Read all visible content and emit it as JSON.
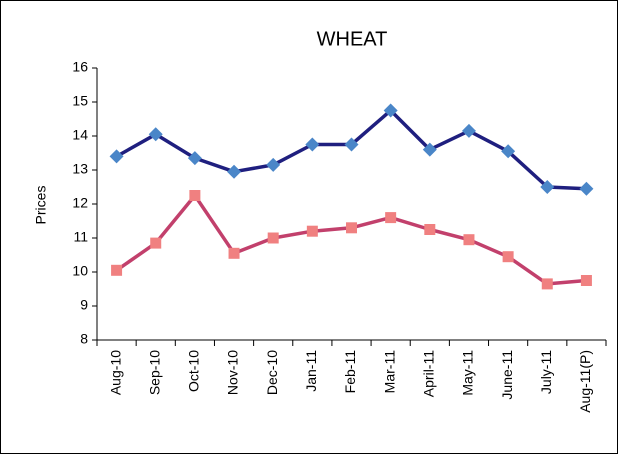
{
  "chart_data": {
    "type": "line",
    "title": "WHEAT",
    "y_label": "Prices",
    "categories": [
      "Aug-10",
      "Sep-10",
      "Oct-10",
      "Nov-10",
      "Dec-10",
      "Jan-11",
      "Feb-11",
      "Mar-11",
      "April-11",
      "May-11",
      "June-11",
      "July-11",
      "Aug-11(P)"
    ],
    "series": [
      {
        "color": "#1f1f7f",
        "marker_color": "#4a86c8",
        "marker": "diamond",
        "values": [
          13.4,
          14.05,
          13.35,
          12.95,
          13.15,
          13.75,
          13.75,
          14.75,
          13.6,
          14.15,
          13.55,
          12.5,
          12.45
        ]
      },
      {
        "color": "#c2406c",
        "marker_color": "#f08080",
        "marker": "square",
        "values": [
          10.05,
          10.85,
          12.25,
          10.55,
          11.0,
          11.2,
          11.3,
          11.6,
          11.25,
          10.95,
          10.45,
          9.65,
          9.75
        ]
      }
    ],
    "ylim": [
      8,
      16
    ],
    "yticks": [
      8,
      9,
      10,
      11,
      12,
      13,
      14,
      15,
      16
    ],
    "grid": false
  }
}
